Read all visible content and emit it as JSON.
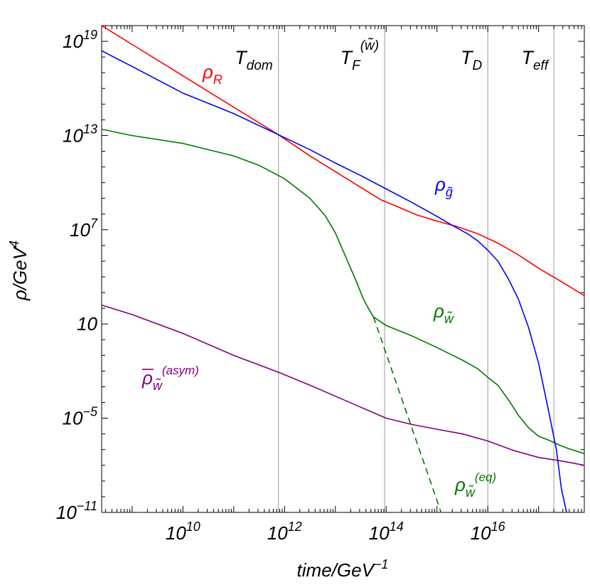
{
  "chart_data": {
    "type": "line",
    "xlabel": {
      "base": "time/GeV",
      "exp": "−1"
    },
    "ylabel": {
      "base": "ρ/GeV",
      "exp": "4"
    },
    "x_scale": "log10",
    "y_scale": "log10",
    "xlim_log10": [
      8.4,
      17.9
    ],
    "ylim_log10": [
      -11,
      20
    ],
    "x_ticks": [
      {
        "log10": 10,
        "base": "10",
        "exp": "10"
      },
      {
        "log10": 12,
        "base": "10",
        "exp": "12"
      },
      {
        "log10": 14,
        "base": "10",
        "exp": "14"
      },
      {
        "log10": 16,
        "base": "10",
        "exp": "16"
      }
    ],
    "y_ticks": [
      {
        "log10": 19,
        "base": "10",
        "exp": "19"
      },
      {
        "log10": 13,
        "base": "10",
        "exp": "13"
      },
      {
        "log10": 7,
        "base": "10",
        "exp": "7"
      },
      {
        "log10": 1,
        "base": "10",
        "exp": ""
      },
      {
        "log10": -5,
        "base": "10",
        "exp": "−5"
      },
      {
        "log10": -11,
        "base": "10",
        "exp": "−11"
      }
    ],
    "vertical_lines": [
      {
        "name": "T_dom",
        "main": "T",
        "sub": "dom",
        "sup": "",
        "x_log10": 11.88
      },
      {
        "name": "T_F",
        "main": "T",
        "sub": "F",
        "sup": "(w̃)",
        "x_log10": 13.97
      },
      {
        "name": "T_D",
        "main": "T",
        "sub": "D",
        "sup": "",
        "x_log10": 16.0
      },
      {
        "name": "T_eff",
        "main": "T",
        "sub": "eff",
        "sup": "",
        "x_log10": 17.3
      }
    ],
    "series": [
      {
        "name": "rho_R",
        "label": {
          "main": "ρ",
          "sub": "R",
          "sup": "",
          "bar": false
        },
        "color": "#ff0000",
        "dashed": false,
        "points": [
          [
            8.4,
            20.0
          ],
          [
            9.0,
            18.8
          ],
          [
            10.0,
            16.8
          ],
          [
            11.0,
            14.8
          ],
          [
            11.88,
            13.05
          ],
          [
            12.5,
            11.7
          ],
          [
            13.0,
            10.7
          ],
          [
            13.5,
            9.7
          ],
          [
            13.9,
            8.9
          ],
          [
            14.2,
            8.5
          ],
          [
            14.6,
            7.95
          ],
          [
            15.0,
            7.55
          ],
          [
            15.4,
            7.2
          ],
          [
            15.8,
            6.75
          ],
          [
            16.2,
            6.15
          ],
          [
            16.6,
            5.4
          ],
          [
            17.0,
            4.55
          ],
          [
            17.5,
            3.6
          ],
          [
            17.9,
            2.8
          ]
        ]
      },
      {
        "name": "rho_gtilde",
        "label": {
          "main": "ρ",
          "sub": "g̃",
          "sup": "",
          "bar": false
        },
        "color": "#0000ff",
        "dashed": false,
        "points": [
          [
            8.4,
            18.4
          ],
          [
            9.0,
            17.4
          ],
          [
            10.0,
            15.7
          ],
          [
            11.0,
            14.4
          ],
          [
            11.88,
            13.05
          ],
          [
            12.5,
            12.1
          ],
          [
            13.0,
            11.25
          ],
          [
            13.5,
            10.45
          ],
          [
            14.0,
            9.6
          ],
          [
            14.5,
            8.75
          ],
          [
            15.0,
            7.85
          ],
          [
            15.4,
            7.1
          ],
          [
            15.6,
            6.75
          ],
          [
            15.8,
            6.3
          ],
          [
            16.0,
            5.7
          ],
          [
            16.2,
            5.0
          ],
          [
            16.4,
            3.9
          ],
          [
            16.6,
            2.6
          ],
          [
            16.8,
            0.8
          ],
          [
            17.0,
            -1.5
          ],
          [
            17.2,
            -4.6
          ],
          [
            17.35,
            -7.0
          ],
          [
            17.45,
            -9.5
          ],
          [
            17.55,
            -11.0
          ]
        ]
      },
      {
        "name": "rho_wtilde",
        "label": {
          "main": "ρ",
          "sub": "w̃",
          "sup": "",
          "bar": false
        },
        "color": "#007700",
        "dashed": false,
        "points": [
          [
            8.4,
            13.4
          ],
          [
            9.0,
            13.0
          ],
          [
            10.0,
            12.5
          ],
          [
            11.0,
            11.7
          ],
          [
            11.5,
            11.1
          ],
          [
            12.0,
            10.25
          ],
          [
            12.5,
            9.0
          ],
          [
            12.8,
            7.9
          ],
          [
            13.0,
            6.8
          ],
          [
            13.2,
            5.3
          ],
          [
            13.4,
            3.8
          ],
          [
            13.55,
            2.6
          ],
          [
            13.65,
            2.0
          ],
          [
            13.75,
            1.45
          ],
          [
            14.0,
            0.9
          ],
          [
            14.5,
            0.25
          ],
          [
            15.0,
            -0.5
          ],
          [
            15.5,
            -1.3
          ],
          [
            15.8,
            -1.85
          ],
          [
            16.0,
            -2.4
          ],
          [
            16.2,
            -2.9
          ],
          [
            16.4,
            -3.8
          ],
          [
            16.6,
            -4.8
          ],
          [
            16.8,
            -5.6
          ],
          [
            17.0,
            -6.15
          ],
          [
            17.2,
            -6.4
          ],
          [
            17.4,
            -6.7
          ],
          [
            17.6,
            -6.95
          ],
          [
            17.9,
            -7.25
          ]
        ]
      },
      {
        "name": "rho_wtilde_eq",
        "label": {
          "main": "ρ",
          "sub": "w̃",
          "sup": "(eq)",
          "bar": false
        },
        "color": "#007700",
        "dashed": true,
        "points": [
          [
            13.75,
            1.45
          ],
          [
            14.0,
            -0.9
          ],
          [
            14.3,
            -3.7
          ],
          [
            14.6,
            -6.5
          ],
          [
            14.9,
            -9.3
          ],
          [
            15.08,
            -11.0
          ]
        ]
      },
      {
        "name": "rho_bar_wtilde_asym",
        "label": {
          "main": "ρ",
          "sub": "w̃",
          "sup": "(asym)",
          "bar": true
        },
        "color": "#800080",
        "dashed": false,
        "points": [
          [
            8.4,
            2.2
          ],
          [
            9.0,
            1.6
          ],
          [
            10.0,
            0.4
          ],
          [
            11.0,
            -1.0
          ],
          [
            11.9,
            -2.1
          ],
          [
            12.5,
            -2.9
          ],
          [
            13.0,
            -3.6
          ],
          [
            13.5,
            -4.3
          ],
          [
            14.0,
            -5.0
          ],
          [
            14.5,
            -5.4
          ],
          [
            15.0,
            -5.7
          ],
          [
            15.5,
            -6.0
          ],
          [
            16.0,
            -6.45
          ],
          [
            16.5,
            -7.05
          ],
          [
            17.0,
            -7.5
          ],
          [
            17.5,
            -7.75
          ],
          [
            17.9,
            -8.0
          ]
        ]
      }
    ]
  }
}
